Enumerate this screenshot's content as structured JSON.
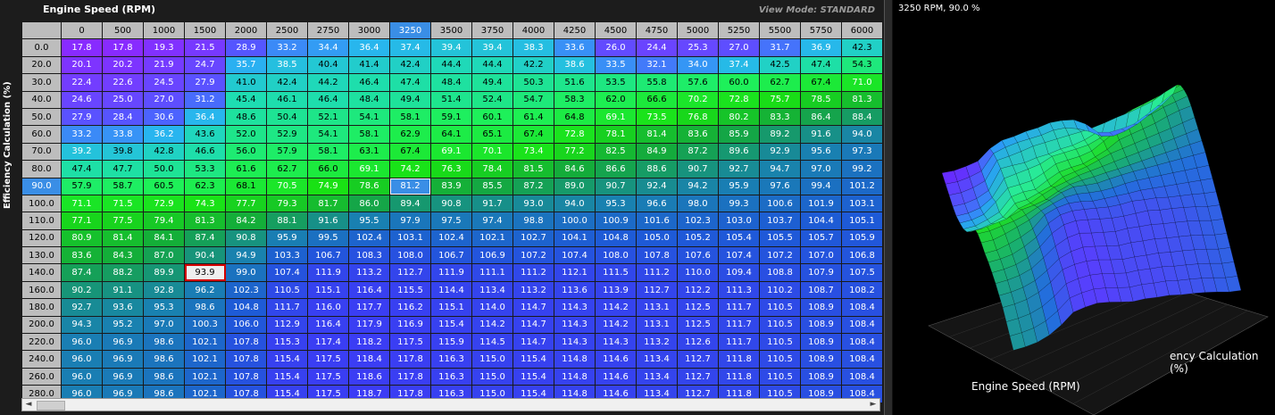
{
  "table": {
    "x_title": "Engine Speed (RPM)",
    "y_title": "Efficiency Calculation (%)",
    "view_mode": "View Mode: STANDARD",
    "active_col_index": 8,
    "active_row_index": 5,
    "cursor_cell": {
      "row": 14,
      "col": 3
    },
    "columns": [
      "0",
      "500",
      "1000",
      "1500",
      "2000",
      "2500",
      "2750",
      "3000",
      "3250",
      "3500",
      "3750",
      "4000",
      "4250",
      "4500",
      "4750",
      "5000",
      "5250",
      "5500",
      "5750",
      "6000"
    ],
    "rows": [
      {
        "label": "0.0",
        "values": [
          "17.8",
          "17.8",
          "19.3",
          "21.5",
          "28.9",
          "33.2",
          "34.4",
          "36.4",
          "37.4",
          "39.4",
          "39.4",
          "38.3",
          "33.6",
          "26.0",
          "24.4",
          "25.3",
          "27.0",
          "31.7",
          "36.9",
          "42.3"
        ]
      },
      {
        "label": "20.0",
        "values": [
          "20.1",
          "20.2",
          "21.9",
          "24.7",
          "35.7",
          "38.5",
          "40.4",
          "41.4",
          "42.4",
          "44.4",
          "44.4",
          "42.2",
          "38.6",
          "33.5",
          "32.1",
          "34.0",
          "37.4",
          "42.5",
          "47.4",
          "54.3"
        ]
      },
      {
        "label": "30.0",
        "values": [
          "22.4",
          "22.6",
          "24.5",
          "27.9",
          "41.0",
          "42.4",
          "44.2",
          "46.4",
          "47.4",
          "48.4",
          "49.4",
          "50.3",
          "51.6",
          "53.5",
          "55.8",
          "57.6",
          "60.0",
          "62.7",
          "67.4",
          "71.0"
        ]
      },
      {
        "label": "40.0",
        "values": [
          "24.6",
          "25.0",
          "27.0",
          "31.2",
          "45.4",
          "46.1",
          "46.4",
          "48.4",
          "49.4",
          "51.4",
          "52.4",
          "54.7",
          "58.3",
          "62.0",
          "66.6",
          "70.2",
          "72.8",
          "75.7",
          "78.5",
          "81.3"
        ]
      },
      {
        "label": "50.0",
        "values": [
          "27.9",
          "28.4",
          "30.6",
          "36.4",
          "48.6",
          "50.4",
          "52.1",
          "54.1",
          "58.1",
          "59.1",
          "60.1",
          "61.4",
          "64.8",
          "69.1",
          "73.5",
          "76.8",
          "80.2",
          "83.3",
          "86.4",
          "88.4"
        ]
      },
      {
        "label": "60.0",
        "values": [
          "33.2",
          "33.8",
          "36.2",
          "43.6",
          "52.0",
          "52.9",
          "54.1",
          "58.1",
          "62.9",
          "64.1",
          "65.1",
          "67.4",
          "72.8",
          "78.1",
          "81.4",
          "83.6",
          "85.9",
          "89.2",
          "91.6",
          "94.0"
        ]
      },
      {
        "label": "70.0",
        "values": [
          "39.2",
          "39.8",
          "42.8",
          "46.6",
          "56.0",
          "57.9",
          "58.1",
          "63.1",
          "67.4",
          "69.1",
          "70.1",
          "73.4",
          "77.2",
          "82.5",
          "84.9",
          "87.2",
          "89.6",
          "92.9",
          "95.6",
          "97.3"
        ]
      },
      {
        "label": "80.0",
        "values": [
          "47.4",
          "47.7",
          "50.0",
          "53.3",
          "61.6",
          "62.7",
          "66.0",
          "69.1",
          "74.2",
          "76.3",
          "78.4",
          "81.5",
          "84.6",
          "86.6",
          "88.6",
          "90.7",
          "92.7",
          "94.7",
          "97.0",
          "99.2"
        ]
      },
      {
        "label": "90.0",
        "values": [
          "57.9",
          "58.7",
          "60.5",
          "62.3",
          "68.1",
          "70.5",
          "74.9",
          "78.6",
          "81.2",
          "83.9",
          "85.5",
          "87.2",
          "89.0",
          "90.7",
          "92.4",
          "94.2",
          "95.9",
          "97.6",
          "99.4",
          "101.2"
        ]
      },
      {
        "label": "100.0",
        "values": [
          "71.1",
          "71.5",
          "72.9",
          "74.3",
          "77.7",
          "79.3",
          "81.7",
          "86.0",
          "89.4",
          "90.8",
          "91.7",
          "93.0",
          "94.0",
          "95.3",
          "96.6",
          "98.0",
          "99.3",
          "100.6",
          "101.9",
          "103.1"
        ]
      },
      {
        "label": "110.0",
        "values": [
          "77.1",
          "77.5",
          "79.4",
          "81.3",
          "84.2",
          "88.1",
          "91.6",
          "95.5",
          "97.9",
          "97.5",
          "97.4",
          "98.8",
          "100.0",
          "100.9",
          "101.6",
          "102.3",
          "103.0",
          "103.7",
          "104.4",
          "105.1"
        ]
      },
      {
        "label": "120.0",
        "values": [
          "80.9",
          "81.4",
          "84.1",
          "87.4",
          "90.8",
          "95.9",
          "99.5",
          "102.4",
          "103.1",
          "102.4",
          "102.1",
          "102.7",
          "104.1",
          "104.8",
          "105.0",
          "105.2",
          "105.4",
          "105.5",
          "105.7",
          "105.9"
        ]
      },
      {
        "label": "130.0",
        "values": [
          "83.6",
          "84.3",
          "87.0",
          "90.4",
          "94.9",
          "103.3",
          "106.7",
          "108.3",
          "108.0",
          "106.7",
          "106.9",
          "107.2",
          "107.4",
          "108.0",
          "107.8",
          "107.6",
          "107.4",
          "107.2",
          "107.0",
          "106.8"
        ]
      },
      {
        "label": "140.0",
        "values": [
          "87.4",
          "88.2",
          "89.9",
          "93.9",
          "99.0",
          "107.4",
          "111.9",
          "113.2",
          "112.7",
          "111.9",
          "111.1",
          "111.2",
          "112.1",
          "111.5",
          "111.2",
          "110.0",
          "109.4",
          "108.8",
          "107.9",
          "107.5"
        ]
      },
      {
        "label": "160.0",
        "values": [
          "90.2",
          "91.1",
          "92.8",
          "96.2",
          "102.3",
          "110.5",
          "115.1",
          "116.4",
          "115.5",
          "114.4",
          "113.4",
          "113.2",
          "113.6",
          "113.9",
          "112.7",
          "112.2",
          "111.3",
          "110.2",
          "108.7",
          "108.2"
        ]
      },
      {
        "label": "180.0",
        "values": [
          "92.7",
          "93.6",
          "95.3",
          "98.6",
          "104.8",
          "111.7",
          "116.0",
          "117.7",
          "116.2",
          "115.1",
          "114.0",
          "114.7",
          "114.3",
          "114.2",
          "113.1",
          "112.5",
          "111.7",
          "110.5",
          "108.9",
          "108.4"
        ]
      },
      {
        "label": "200.0",
        "values": [
          "94.3",
          "95.2",
          "97.0",
          "100.3",
          "106.0",
          "112.9",
          "116.4",
          "117.9",
          "116.9",
          "115.4",
          "114.2",
          "114.7",
          "114.3",
          "114.2",
          "113.1",
          "112.5",
          "111.7",
          "110.5",
          "108.9",
          "108.4"
        ]
      },
      {
        "label": "220.0",
        "values": [
          "96.0",
          "96.9",
          "98.6",
          "102.1",
          "107.8",
          "115.3",
          "117.4",
          "118.2",
          "117.5",
          "115.9",
          "114.5",
          "114.7",
          "114.3",
          "114.3",
          "113.2",
          "112.6",
          "111.7",
          "110.5",
          "108.9",
          "108.4"
        ]
      },
      {
        "label": "240.0",
        "values": [
          "96.0",
          "96.9",
          "98.6",
          "102.1",
          "107.8",
          "115.4",
          "117.5",
          "118.4",
          "117.8",
          "116.3",
          "115.0",
          "115.4",
          "114.8",
          "114.6",
          "113.4",
          "112.7",
          "111.8",
          "110.5",
          "108.9",
          "108.4"
        ]
      },
      {
        "label": "260.0",
        "values": [
          "96.0",
          "96.9",
          "98.6",
          "102.1",
          "107.8",
          "115.4",
          "117.5",
          "118.6",
          "117.8",
          "116.3",
          "115.0",
          "115.4",
          "114.8",
          "114.6",
          "113.4",
          "112.7",
          "111.8",
          "110.5",
          "108.9",
          "108.4"
        ]
      },
      {
        "label": "280.0",
        "values": [
          "96.0",
          "96.9",
          "98.6",
          "102.1",
          "107.8",
          "115.4",
          "117.5",
          "118.7",
          "117.8",
          "116.3",
          "115.0",
          "115.4",
          "114.8",
          "114.6",
          "113.4",
          "112.7",
          "111.8",
          "110.5",
          "108.9",
          "108.4"
        ]
      }
    ]
  },
  "scrollbar": {
    "left_arrow": "◄",
    "right_arrow": "►"
  },
  "graph": {
    "status": "3250 RPM, 90.0 %",
    "x_axis_label": "Engine Speed (RPM)",
    "y_axis_label": "ency Calculation (%)",
    "colors": {
      "low": "#6a1bff",
      "mid": "#2bbdf0",
      "high": "#15e000",
      "very_high": "#1f40e0",
      "max": "#6a2bff"
    }
  }
}
